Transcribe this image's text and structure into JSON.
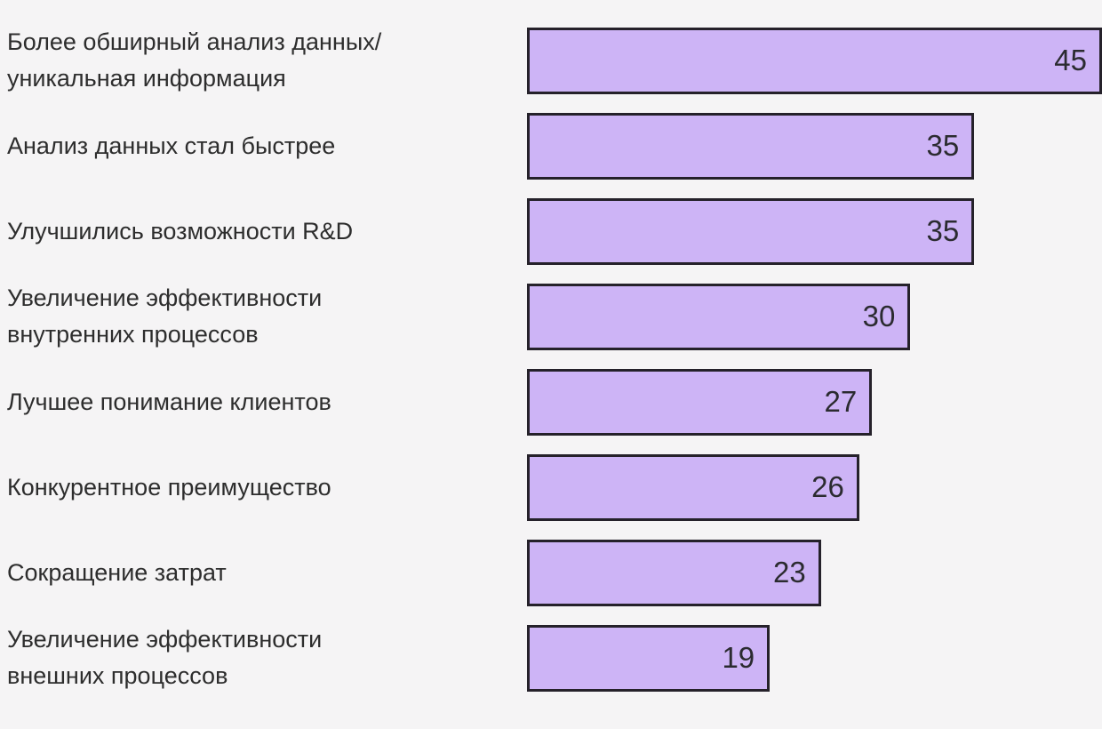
{
  "chart_data": {
    "type": "bar",
    "orientation": "horizontal",
    "title": "",
    "xlabel": "",
    "ylabel": "",
    "categories": [
      "Более обширный анализ данных/\nуникальная информация",
      "Анализ данных стал быстрее",
      "Улучшились возможности R&D",
      "Увеличение эффективности\nвнутренних процессов",
      "Лучшее понимание клиентов",
      "Конкурентное преимущество",
      "Сокращение затрат",
      "Увеличение эффективности\nвнешних процессов"
    ],
    "values": [
      45,
      35,
      35,
      30,
      27,
      26,
      23,
      19
    ],
    "xlim": [
      0,
      45
    ],
    "grid": false,
    "legend": false,
    "value_labels": "inside-right"
  },
  "style": {
    "background": "#f5f4f5",
    "bar_fill": "#cdb4f6",
    "bar_border": "#25212a",
    "label_color": "#2d2d2d",
    "value_color": "#2b2b30"
  }
}
